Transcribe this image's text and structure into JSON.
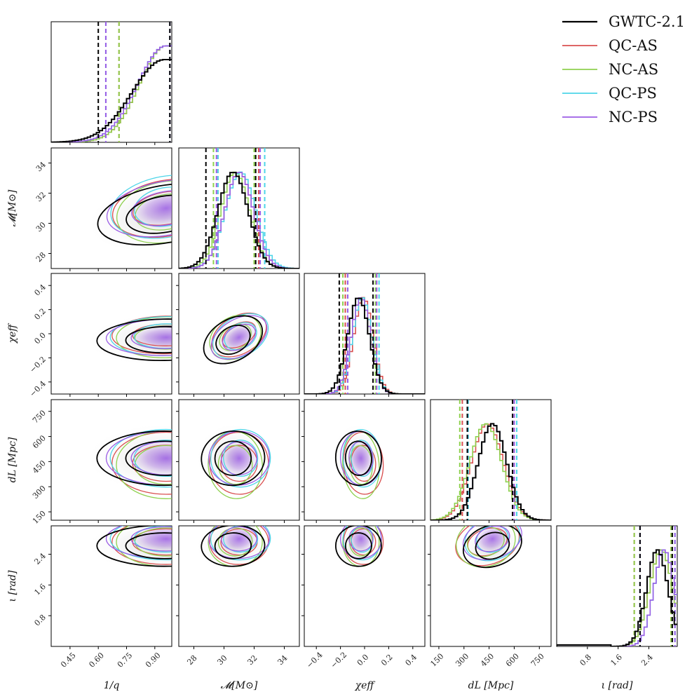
{
  "chart_data": {
    "type": "corner",
    "parameters": [
      {
        "key": "q",
        "label": "1/q",
        "range": [
          0.35,
          0.99
        ],
        "ticks": [
          0.45,
          0.6,
          0.75,
          0.9
        ],
        "tick_labels": [
          "0.45",
          "0.60",
          "0.75",
          "0.90"
        ]
      },
      {
        "key": "mc",
        "label": "𝓜[M⊙]",
        "range": [
          27,
          35
        ],
        "ticks": [
          28,
          30,
          32,
          34
        ],
        "tick_labels": [
          "28",
          "30",
          "32",
          "34"
        ]
      },
      {
        "key": "chi",
        "label": "χeff",
        "range": [
          -0.5,
          0.5
        ],
        "ticks": [
          -0.4,
          -0.2,
          0.0,
          0.2,
          0.4
        ],
        "tick_labels": [
          "−0.4",
          "−0.2",
          "0.0",
          "0.2",
          "0.4"
        ]
      },
      {
        "key": "dl",
        "label": "dL [Mpc]",
        "range": [
          100,
          820
        ],
        "ticks": [
          150,
          300,
          450,
          600,
          750
        ],
        "tick_labels": [
          "150",
          "300",
          "450",
          "600",
          "750"
        ]
      },
      {
        "key": "iota",
        "label": "ι [rad]",
        "range": [
          0,
          3.14
        ],
        "ticks": [
          0.8,
          1.6,
          2.4
        ],
        "tick_labels": [
          "0.8",
          "1.6",
          "2.4"
        ]
      }
    ],
    "series": [
      {
        "name": "GWTC-2.1",
        "color": "#000000"
      },
      {
        "name": "QC-AS",
        "color": "#d95050"
      },
      {
        "name": "NC-AS",
        "color": "#8fd14f"
      },
      {
        "name": "QC-PS",
        "color": "#4dd5e8"
      },
      {
        "name": "NC-PS",
        "color": "#9b5de5"
      }
    ],
    "quantile_lines": {
      "q": [
        [
          0.6,
          0.98
        ],
        [
          0.71,
          0.98
        ],
        [
          0.71,
          0.98
        ],
        [
          0.64,
          0.98
        ],
        [
          0.64,
          0.98
        ]
      ],
      "mc": [
        [
          28.8,
          32.1
        ],
        [
          29.6,
          32.3
        ],
        [
          29.3,
          32.0
        ],
        [
          29.6,
          32.7
        ],
        [
          29.5,
          32.4
        ]
      ],
      "chi": [
        [
          -0.21,
          0.07
        ],
        [
          -0.16,
          0.1
        ],
        [
          -0.18,
          0.09
        ],
        [
          -0.14,
          0.12
        ],
        [
          -0.14,
          0.1
        ]
      ],
      "dl": [
        [
          320,
          590
        ],
        [
          290,
          600
        ],
        [
          275,
          590
        ],
        [
          325,
          615
        ],
        [
          320,
          600
        ]
      ],
      "iota": [
        [
          2.17,
          3.01
        ],
        [
          2.02,
          2.98
        ],
        [
          2.02,
          2.98
        ],
        [
          2.17,
          3.08
        ],
        [
          2.17,
          3.08
        ]
      ]
    },
    "medians": {
      "q": [
        0.93,
        0.93,
        0.93,
        0.93,
        0.93
      ],
      "mc": [
        30.7,
        31.0,
        30.8,
        31.1,
        31.0
      ],
      "chi": [
        -0.05,
        0.0,
        -0.02,
        -0.02,
        -0.03
      ],
      "dl": [
        470,
        450,
        440,
        470,
        470
      ],
      "iota": [
        2.65,
        2.7,
        2.7,
        2.72,
        2.72
      ]
    }
  },
  "legend": [
    {
      "label": "GWTC-2.1",
      "color": "#000000"
    },
    {
      "label": "QC-AS",
      "color": "#d95050"
    },
    {
      "label": "NC-AS",
      "color": "#8fd14f"
    },
    {
      "label": "QC-PS",
      "color": "#4dd5e8"
    },
    {
      "label": "NC-PS",
      "color": "#9b5de5"
    }
  ],
  "axis_labels": {
    "x": [
      "1/q",
      "𝓜[M⊙]",
      "χeff",
      "dL [Mpc]",
      "ι [rad]"
    ],
    "y": [
      "𝓜[M⊙]",
      "χeff",
      "dL [Mpc]",
      "ι [rad]"
    ]
  }
}
